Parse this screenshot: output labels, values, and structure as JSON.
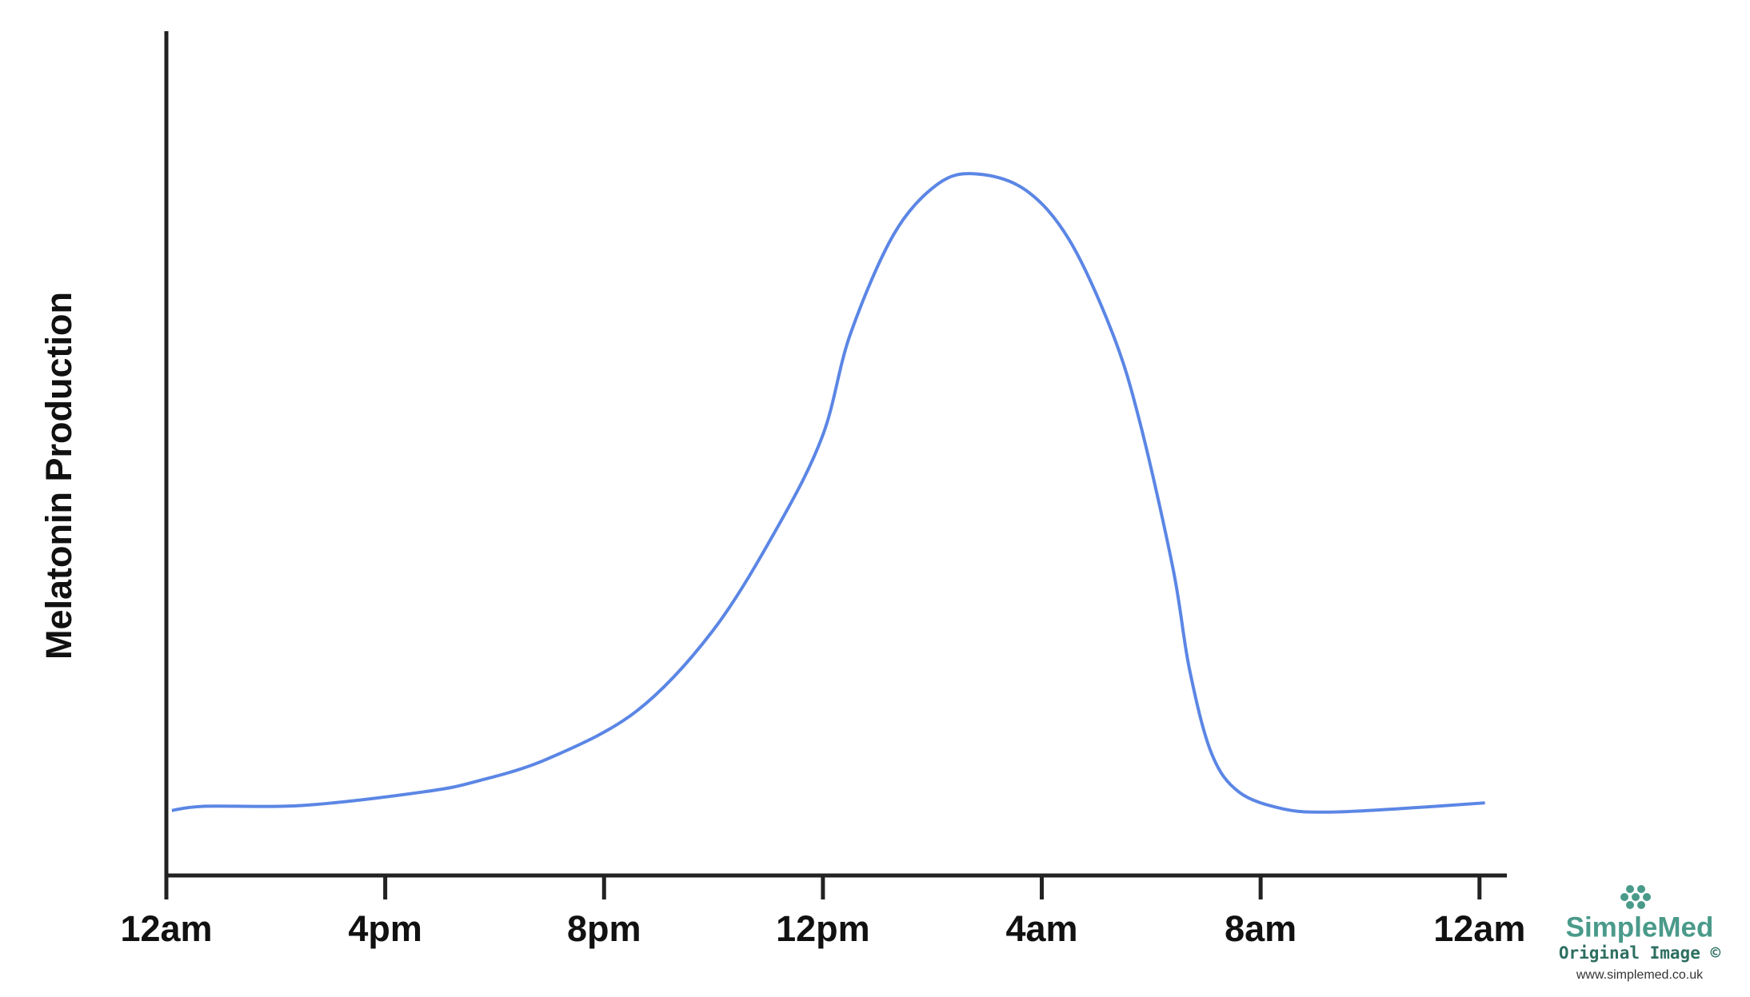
{
  "chart_data": {
    "type": "line",
    "y_label": "Melatonin Production",
    "x": [
      0.1,
      0.7,
      2.5,
      4.7,
      5.7,
      7.0,
      8.6,
      10.0,
      11.2,
      12.0,
      12.5,
      13.3,
      14.1,
      14.8,
      15.7,
      16.5,
      17.3,
      17.8,
      18.4,
      18.7,
      19.1,
      19.6,
      20.4,
      21.2,
      22.5,
      24.1
    ],
    "series": [
      {
        "color": "#5b86e5",
        "values": [
          7.7,
          8.2,
          8.3,
          9.9,
          11.2,
          13.9,
          19.5,
          29.1,
          41.6,
          52.2,
          64.1,
          76.0,
          81.9,
          83.1,
          81.2,
          75.3,
          64.1,
          53.5,
          36.3,
          24.4,
          14.5,
          9.9,
          7.9,
          7.5,
          7.9,
          8.6
        ]
      }
    ],
    "xlim": [
      0,
      24.5
    ],
    "ylim": [
      0,
      100
    ],
    "xticks": [
      {
        "value": 0,
        "label": "12am"
      },
      {
        "value": 4,
        "label": "4pm"
      },
      {
        "value": 8,
        "label": "8pm"
      },
      {
        "value": 12,
        "label": "12pm"
      },
      {
        "value": 16,
        "label": "4am"
      },
      {
        "value": 20,
        "label": "8am"
      },
      {
        "value": 24,
        "label": "12am"
      }
    ],
    "grid": false
  },
  "watermark": {
    "brand": "SimpleMed",
    "caption": "Original Image ©",
    "url": "www.simplemed.co.uk"
  }
}
